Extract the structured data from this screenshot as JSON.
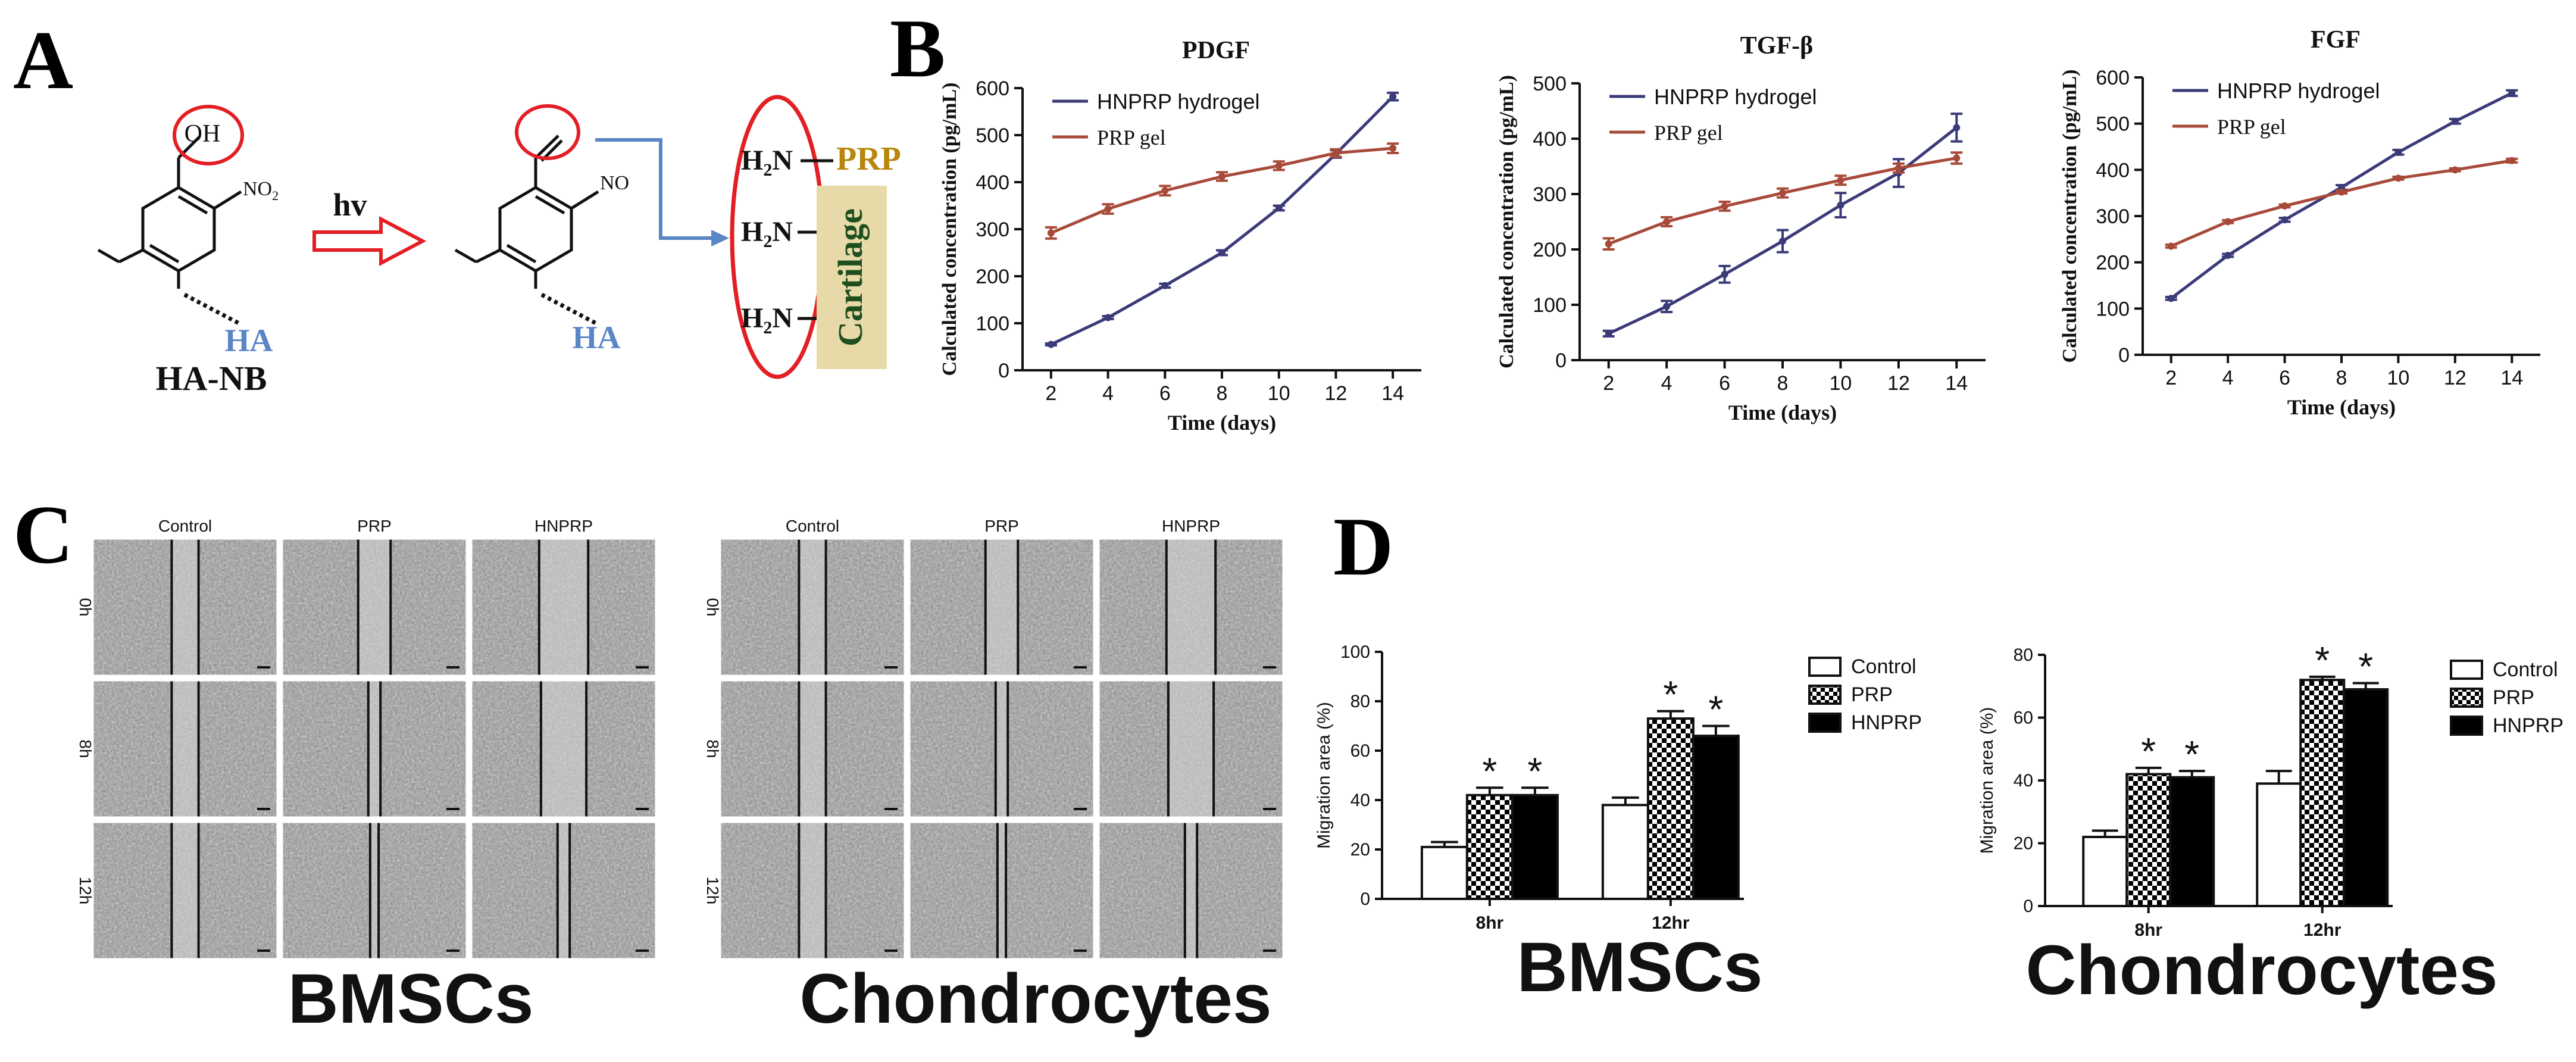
{
  "panels": {
    "a": "A",
    "b": "B",
    "c": "C",
    "d": "D"
  },
  "scheme": {
    "oh": "OH",
    "no2": "NO",
    "no2_sub": "2",
    "no": "NO",
    "hv": "hv",
    "ha_left": "HA",
    "ha_right": "HA",
    "ha_nb": "HA-NB",
    "amine_h": "H",
    "amine_sub": "2",
    "amine_n": "N",
    "prp": "PRP",
    "cartilage": "Cartilage",
    "colors": {
      "red": "#e31e24",
      "blue": "#5b86c6",
      "prp_gold": "#b8860b",
      "cartilage_green": "#1f4e1f",
      "cartilage_bg": "#e8d9a8"
    }
  },
  "chart_data": [
    {
      "type": "line",
      "title": "PDGF",
      "xlabel": "Time (days)",
      "ylabel": "Calculated concentration (pg/mL)",
      "x": [
        2,
        4,
        6,
        8,
        10,
        12,
        14
      ],
      "xlim": [
        1,
        15
      ],
      "ylim": [
        0,
        600
      ],
      "xticks": [
        "2",
        "4",
        "6",
        "8",
        "10",
        "12",
        "14"
      ],
      "yticks": [
        "0",
        "100",
        "200",
        "300",
        "400",
        "500",
        "600"
      ],
      "yticks_values": [
        0,
        100,
        200,
        300,
        400,
        500,
        600
      ],
      "series": [
        {
          "name": "HNPRP hydrogel",
          "color": "#3b3b7a",
          "values": [
            55,
            112,
            180,
            250,
            345,
            460,
            582
          ],
          "errors": [
            2,
            3,
            4,
            5,
            5,
            8,
            8
          ]
        },
        {
          "name": "PRP gel",
          "color": "#a84a3a",
          "values": [
            292,
            343,
            382,
            412,
            435,
            462,
            472
          ],
          "errors": [
            12,
            10,
            10,
            9,
            9,
            8,
            10
          ]
        }
      ]
    },
    {
      "type": "line",
      "title": "TGF-β",
      "xlabel": "Time (days)",
      "ylabel": "Calculated concentration (pg/mL)",
      "x": [
        2,
        4,
        6,
        8,
        10,
        12,
        14
      ],
      "xlim": [
        1,
        15
      ],
      "ylim": [
        0,
        500
      ],
      "xticks": [
        "2",
        "4",
        "6",
        "8",
        "10",
        "12",
        "14"
      ],
      "yticks": [
        "0",
        "100",
        "200",
        "300",
        "400",
        "500"
      ],
      "yticks_values": [
        0,
        100,
        200,
        300,
        400,
        500
      ],
      "series": [
        {
          "name": "HNPRP hydrogel",
          "color": "#3b3b7a",
          "values": [
            48,
            97,
            155,
            215,
            280,
            338,
            420
          ],
          "errors": [
            5,
            10,
            15,
            20,
            22,
            25,
            25
          ]
        },
        {
          "name": "PRP gel",
          "color": "#a84a3a",
          "values": [
            210,
            250,
            278,
            302,
            325,
            347,
            365
          ],
          "errors": [
            10,
            8,
            8,
            8,
            8,
            8,
            10
          ]
        }
      ]
    },
    {
      "type": "line",
      "title": "FGF",
      "xlabel": "Time (days)",
      "ylabel": "Calculated concentration (pg/mL)",
      "x": [
        2,
        4,
        6,
        8,
        10,
        12,
        14
      ],
      "xlim": [
        1,
        15
      ],
      "ylim": [
        0,
        600
      ],
      "xticks": [
        "2",
        "4",
        "6",
        "8",
        "10",
        "12",
        "14"
      ],
      "yticks": [
        "0",
        "100",
        "200",
        "300",
        "400",
        "500",
        "600"
      ],
      "yticks_values": [
        0,
        100,
        200,
        300,
        400,
        500,
        600
      ],
      "series": [
        {
          "name": "HNPRP hydrogel",
          "color": "#3b3b7a",
          "values": [
            122,
            215,
            292,
            362,
            438,
            505,
            566
          ],
          "errors": [
            3,
            3,
            4,
            5,
            5,
            5,
            6
          ]
        },
        {
          "name": "PRP gel",
          "color": "#a84a3a",
          "values": [
            235,
            288,
            322,
            352,
            382,
            400,
            420
          ],
          "errors": [
            3,
            3,
            3,
            3,
            3,
            3,
            4
          ]
        }
      ]
    },
    {
      "type": "bar",
      "caption": "BMSCs",
      "ylabel": "Migration area (%)",
      "categories": [
        "8hr",
        "12hr"
      ],
      "ylim": [
        0,
        100
      ],
      "yticks": [
        "0",
        "20",
        "40",
        "60",
        "80",
        "100"
      ],
      "yticks_values": [
        0,
        20,
        40,
        60,
        80,
        100
      ],
      "significance": "*",
      "series": [
        {
          "name": "Control",
          "fill": "white",
          "values": [
            21,
            38
          ],
          "errors": [
            2,
            3
          ],
          "sig": [
            false,
            false
          ]
        },
        {
          "name": "PRP",
          "fill": "checker",
          "values": [
            42,
            73
          ],
          "errors": [
            3,
            3
          ],
          "sig": [
            true,
            true
          ]
        },
        {
          "name": "HNPRP",
          "fill": "black",
          "values": [
            42,
            66
          ],
          "errors": [
            3,
            4
          ],
          "sig": [
            true,
            true
          ]
        }
      ]
    },
    {
      "type": "bar",
      "caption": "Chondrocytes",
      "ylabel": "Migration area (%)",
      "categories": [
        "8hr",
        "12hr"
      ],
      "ylim": [
        0,
        80
      ],
      "yticks": [
        "0",
        "20",
        "40",
        "60",
        "80"
      ],
      "yticks_values": [
        0,
        20,
        40,
        60,
        80
      ],
      "significance": "*",
      "series": [
        {
          "name": "Control",
          "fill": "white",
          "values": [
            22,
            39
          ],
          "errors": [
            2,
            4
          ],
          "sig": [
            false,
            false
          ]
        },
        {
          "name": "PRP",
          "fill": "checker",
          "values": [
            42,
            72
          ],
          "errors": [
            2,
            1
          ],
          "sig": [
            true,
            true
          ]
        },
        {
          "name": "HNPRP",
          "fill": "black",
          "values": [
            41,
            69
          ],
          "errors": [
            2,
            2
          ],
          "sig": [
            true,
            true
          ]
        }
      ]
    }
  ],
  "scratch": [
    {
      "caption": "BMSCs",
      "cols": [
        "Control",
        "PRP",
        "HNPRP"
      ],
      "rows": [
        "0h",
        "8h",
        "12h"
      ]
    },
    {
      "caption": "Chondrocytes",
      "cols": [
        "Control",
        "PRP",
        "HNPRP"
      ],
      "rows": [
        "0h",
        "8h",
        "12h"
      ]
    }
  ]
}
